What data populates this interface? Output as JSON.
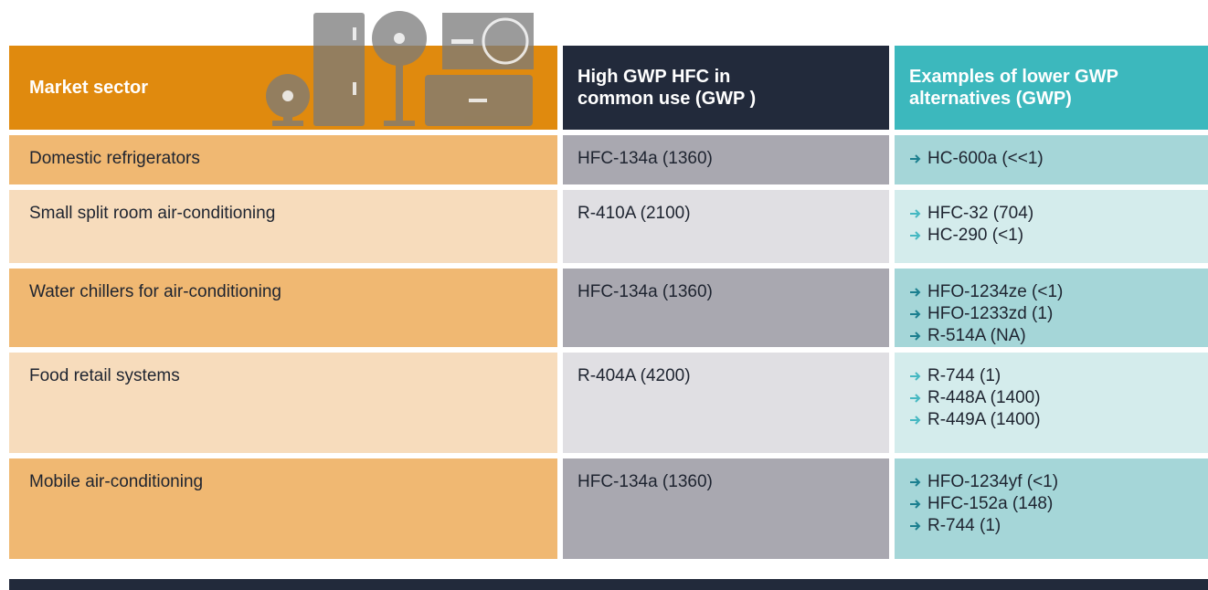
{
  "table": {
    "header": [
      "Market sector",
      "High GWP HFC in common use (GWP )",
      "Examples of lower GWP alternatives (GWP)"
    ],
    "rows": [
      {
        "sector": "Domestic refrigerators",
        "hfc": "HFC-134a (1360)",
        "alternatives": [
          "HC-600a (<<1)"
        ]
      },
      {
        "sector": "Small split room air-conditioning",
        "hfc": "R-410A (2100)",
        "alternatives": [
          "HFC-32 (704)",
          "HC-290 (<1)"
        ]
      },
      {
        "sector": "Water chillers for air-conditioning",
        "hfc": "HFC-134a (1360)",
        "alternatives": [
          "HFO-1234ze (<1)",
          "HFO-1233zd (1)",
          "R-514A (NA)"
        ]
      },
      {
        "sector": "Food retail systems",
        "hfc": "R-404A (4200)",
        "alternatives": [
          "R-744 (1)",
          "R-448A (1400)",
          "R-449A (1400)"
        ]
      },
      {
        "sector": "Mobile air-conditioning",
        "hfc": "HFC-134a (1360)",
        "alternatives": [
          "HFO-1234yf (<1)",
          "HFC-152a (148)",
          "R-744 (1)"
        ]
      }
    ]
  }
}
